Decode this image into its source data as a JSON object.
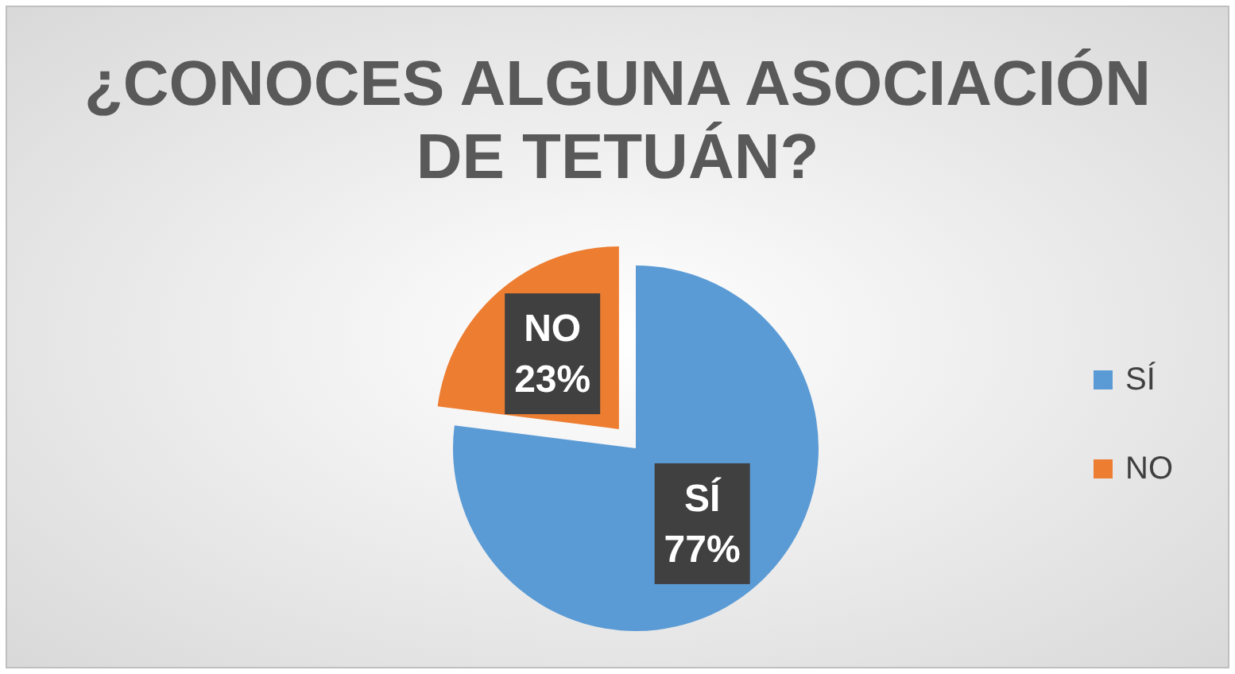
{
  "chart_data": {
    "type": "pie",
    "title": "¿CONOCES ALGUNA ASOCIACIÓN DE TETUÁN?",
    "categories": [
      "SÍ",
      "NO"
    ],
    "values": [
      77,
      23
    ],
    "colors": [
      "#5b9bd5",
      "#ed7d31"
    ],
    "value_labels": [
      "77%",
      "23%"
    ],
    "legend": "right"
  }
}
